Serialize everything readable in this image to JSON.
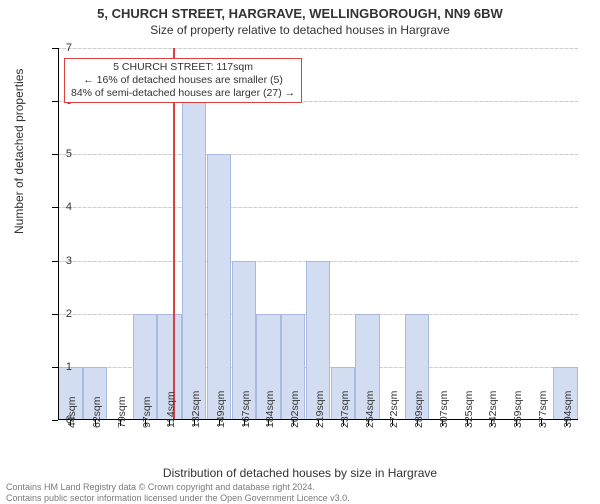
{
  "title": "5, CHURCH STREET, HARGRAVE, WELLINGBOROUGH, NN9 6BW",
  "subtitle": "Size of property relative to detached houses in Hargrave",
  "chart": {
    "type": "histogram",
    "y_label": "Number of detached properties",
    "x_label": "Distribution of detached houses by size in Hargrave",
    "ylim": [
      0,
      7
    ],
    "yticks": [
      0,
      1,
      2,
      3,
      4,
      5,
      6,
      7
    ],
    "grid_color": "#cccccc",
    "background_color": "#ffffff",
    "axis_color": "#000000",
    "bar_fill": "#d3ddf2",
    "bar_border": "#a9b9e0",
    "marker_color": "#d94141",
    "marker_x": 117,
    "x_min": 36,
    "x_step": 17.5,
    "categories": [
      "44sqm",
      "62sqm",
      "79sqm",
      "97sqm",
      "114sqm",
      "132sqm",
      "149sqm",
      "167sqm",
      "184sqm",
      "202sqm",
      "219sqm",
      "237sqm",
      "254sqm",
      "272sqm",
      "289sqm",
      "307sqm",
      "325sqm",
      "342sqm",
      "359sqm",
      "377sqm",
      "394sqm"
    ],
    "values": [
      1,
      1,
      0,
      2,
      2,
      6,
      5,
      3,
      2,
      2,
      3,
      1,
      2,
      0,
      2,
      0,
      0,
      0,
      0,
      0,
      1
    ],
    "bar_width_ratio": 0.98,
    "tick_fontsize": 10.5,
    "label_fontsize": 12,
    "title_fontsize": 13
  },
  "annotation": {
    "line1": "5 CHURCH STREET: 117sqm",
    "line2": "← 16% of detached houses are smaller (5)",
    "line3": "84% of semi-detached houses are larger (27) →",
    "border_color": "#d94141",
    "bg_color": "#ffffff"
  },
  "footer": {
    "line1": "Contains HM Land Registry data © Crown copyright and database right 2024.",
    "line2": "Contains public sector information licensed under the Open Government Licence v3.0."
  }
}
